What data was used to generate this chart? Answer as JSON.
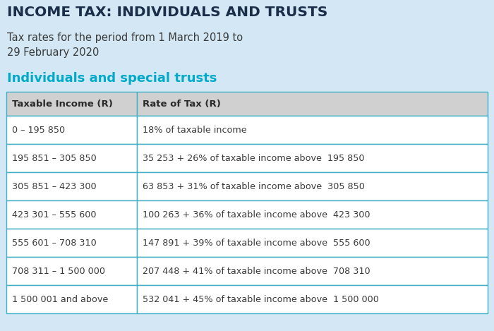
{
  "title": "INCOME TAX: INDIVIDUALS AND TRUSTS",
  "subtitle_line1": "Tax rates for the period from 1 March 2019 to",
  "subtitle_line2": "29 February 2020",
  "section_title": "Individuals and special trusts",
  "background_color": "#d3e8f4",
  "title_color": "#1a2e4a",
  "subtitle_color": "#3a3a3a",
  "section_title_color": "#00aac8",
  "header_bg": "#d0d0d0",
  "table_border_color": "#40b0c8",
  "col1_header": "Taxable Income (R)",
  "col2_header": "Rate of Tax (R)",
  "rows": [
    [
      "0 – 195 850",
      "18% of taxable income"
    ],
    [
      "195 851 – 305 850",
      "35 253 + 26% of taxable income above  195 850"
    ],
    [
      "305 851 – 423 300",
      "63 853 + 31% of taxable income above  305 850"
    ],
    [
      "423 301 – 555 600",
      "100 263 + 36% of taxable income above  423 300"
    ],
    [
      "555 601 – 708 310",
      "147 891 + 39% of taxable income above  555 600"
    ],
    [
      "708 311 – 1 500 000",
      "207 448 + 41% of taxable income above  708 310"
    ],
    [
      "1 500 001 and above",
      "532 041 + 45% of taxable income above  1 500 000"
    ]
  ],
  "text_color": "#3a3a3a",
  "header_text_color": "#2a2a2a",
  "fig_width": 7.0,
  "fig_height": 4.69,
  "dpi": 100
}
